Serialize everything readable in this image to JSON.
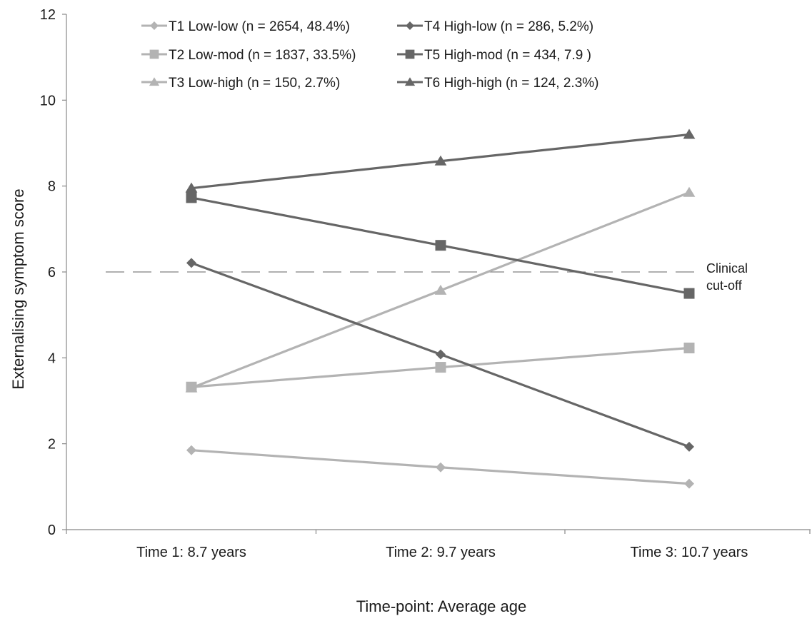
{
  "chart_data": {
    "type": "line",
    "xlabel": "Time-point: Average age",
    "ylabel": "Externalising symptom score",
    "categories": [
      "Time 1: 8.7 years",
      "Time 2: 9.7 years",
      "Time 3: 10.7 years"
    ],
    "ylim": [
      0,
      12
    ],
    "yticks": [
      0,
      2,
      4,
      6,
      8,
      10,
      12
    ],
    "ytick_labels": [
      "0",
      "2",
      "4",
      "6",
      "8",
      "10",
      "12"
    ],
    "grid": false,
    "legend_position": "top",
    "series": [
      {
        "name": "T1 Low-low (n = 2654, 48.4%)",
        "values": [
          1.85,
          1.45,
          1.07
        ],
        "marker": "diamond",
        "color": "#b3b3b3"
      },
      {
        "name": "T2 Low-mod (n = 1837, 33.5%)",
        "values": [
          3.32,
          3.78,
          4.23
        ],
        "marker": "square",
        "color": "#b3b3b3"
      },
      {
        "name": "T3 Low-high (n = 150, 2.7%)",
        "values": [
          3.3,
          5.57,
          7.85
        ],
        "marker": "triangle",
        "color": "#b3b3b3"
      },
      {
        "name": "T4 High-low (n = 286, 5.2%)",
        "values": [
          6.21,
          4.08,
          1.93
        ],
        "marker": "diamond",
        "color": "#666666"
      },
      {
        "name": "T5 High-mod (n = 434, 7.9 )",
        "values": [
          7.73,
          6.62,
          5.5
        ],
        "marker": "square",
        "color": "#666666"
      },
      {
        "name": "T6 High-high (n = 124, 2.3%)",
        "values": [
          7.95,
          8.58,
          9.2
        ],
        "marker": "triangle",
        "color": "#666666"
      }
    ],
    "reference_line": {
      "y": 6,
      "style": "dashed",
      "color": "#808080",
      "label": [
        "Clinical",
        "cut-off"
      ]
    }
  }
}
